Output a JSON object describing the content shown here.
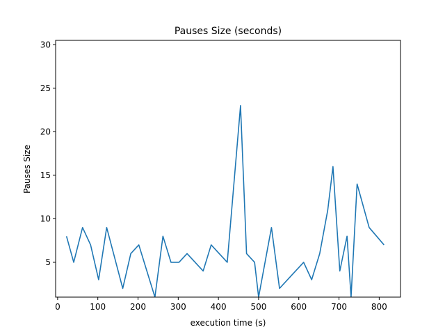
{
  "chart_data": {
    "type": "line",
    "title": "Pauses Size (seconds)",
    "xlabel": "execution time (s)",
    "ylabel": "Pauses Size",
    "xlim": [
      -5,
      853
    ],
    "ylim": [
      1,
      30.5
    ],
    "xticks": [
      0,
      100,
      200,
      300,
      400,
      500,
      600,
      700,
      800
    ],
    "yticks": [
      5,
      10,
      15,
      20,
      25,
      30
    ],
    "grid": false,
    "series": [
      {
        "color": "#1f77b4",
        "x": [
          22,
          40,
          62,
          82,
          102,
          122,
          142,
          162,
          182,
          202,
          222,
          242,
          262,
          282,
          302,
          322,
          342,
          362,
          382,
          402,
          422,
          455,
          470,
          490,
          500,
          532,
          552,
          572,
          592,
          612,
          632,
          652,
          672,
          685,
          702,
          720,
          730,
          745,
          775,
          812
        ],
        "y": [
          8,
          5,
          9,
          7,
          3,
          9,
          5.5,
          2,
          6,
          7,
          4,
          1,
          8,
          5,
          5,
          6,
          5,
          4,
          7,
          6,
          5,
          23,
          6,
          5,
          1,
          9,
          2,
          3,
          4,
          5,
          3,
          6,
          11,
          16,
          4,
          8,
          1,
          14,
          9,
          7
        ]
      }
    ]
  }
}
